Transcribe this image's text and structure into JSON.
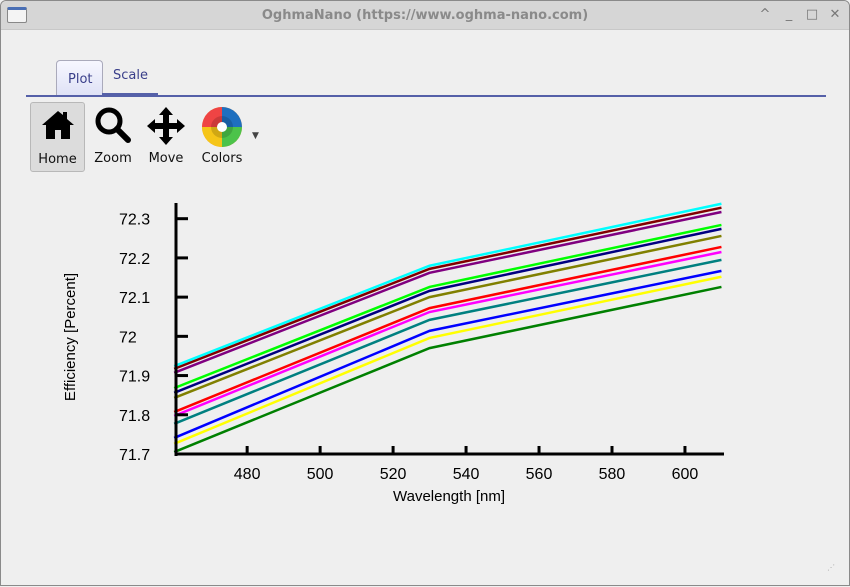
{
  "window": {
    "title": "OghmaNano (https://www.oghma-nano.com)",
    "controls": [
      "^",
      "_",
      "□",
      "✕"
    ]
  },
  "tabs": [
    {
      "label": "Plot",
      "active": true
    },
    {
      "label": "Scale",
      "active": false
    }
  ],
  "toolbar": {
    "home": "Home",
    "zoom": "Zoom",
    "move": "Move",
    "colors": "Colors"
  },
  "chart_data": {
    "type": "line",
    "xlabel": "Wavelength [nm]",
    "ylabel": "Efficiency [Percent]",
    "xlim": [
      460.5,
      610.7
    ],
    "ylim": [
      71.7,
      72.34
    ],
    "xticks": [
      480,
      500,
      520,
      540,
      560,
      580,
      600
    ],
    "yticks": [
      "71.7",
      "71.8",
      "71.9",
      "72",
      "72.1",
      "72.2",
      "72.3"
    ],
    "x": [
      460,
      530,
      610
    ],
    "series": [
      {
        "color": "#00ffff",
        "values": [
          71.924,
          72.18,
          72.338
        ]
      },
      {
        "color": "#800000",
        "values": [
          71.917,
          72.172,
          72.328
        ]
      },
      {
        "color": "#800080",
        "values": [
          71.907,
          72.162,
          72.317
        ]
      },
      {
        "color": "#00ff00",
        "values": [
          71.868,
          72.126,
          72.284
        ]
      },
      {
        "color": "#000080",
        "values": [
          71.856,
          72.116,
          72.274
        ]
      },
      {
        "color": "#808000",
        "values": [
          71.843,
          72.1,
          72.256
        ]
      },
      {
        "color": "#ff0000",
        "values": [
          71.807,
          72.072,
          72.228
        ]
      },
      {
        "color": "#ff00ff",
        "values": [
          71.797,
          72.062,
          72.215
        ]
      },
      {
        "color": "#008080",
        "values": [
          71.777,
          72.042,
          72.195
        ]
      },
      {
        "color": "#0000ff",
        "values": [
          71.741,
          72.014,
          72.167
        ]
      },
      {
        "color": "#ffff00",
        "values": [
          71.726,
          71.996,
          72.152
        ]
      },
      {
        "color": "#008000",
        "values": [
          71.705,
          71.97,
          72.126
        ]
      }
    ]
  }
}
